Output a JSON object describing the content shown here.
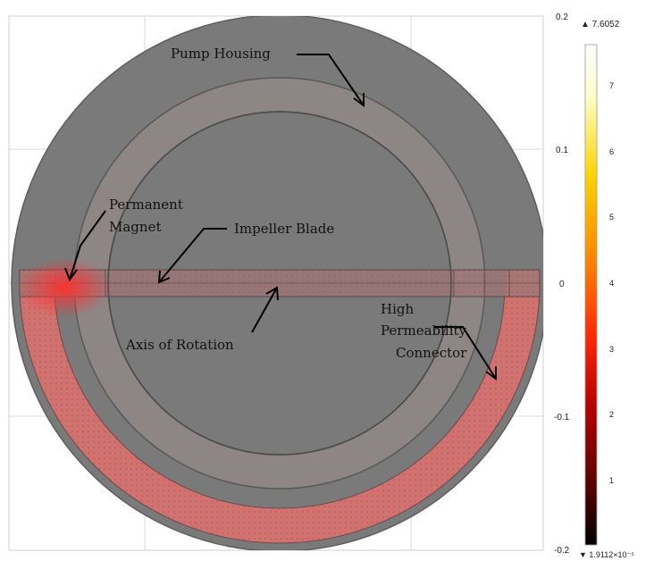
{
  "figure": {
    "labels": {
      "pump_housing": "Pump Housing",
      "permanent_magnet_line1": "Permanent",
      "permanent_magnet_line2": "Magnet",
      "impeller_blade": "Impeller Blade",
      "axis_of_rotation": "Axis of Rotation",
      "high_perm_line1": "High",
      "high_perm_line2": "Permeability",
      "high_perm_line3": "Connector"
    },
    "y_axis_ticks": [
      "0.2",
      "0.1",
      "0",
      "-0.1",
      "-0.2"
    ],
    "colorbar": {
      "max_label": "▲ 7.6052",
      "min_label": "▼ 1.9112×10⁻⁵",
      "ticks": [
        "7",
        "6",
        "5",
        "4",
        "3",
        "2",
        "1"
      ],
      "colors": [
        "#000000",
        "#5a0000",
        "#b80000",
        "#ff2a00",
        "#ff8a00",
        "#ffd400",
        "#ffffcc",
        "#ffffff"
      ]
    },
    "colors": {
      "housing": "#7a7a7a",
      "ring": "#8e8585",
      "connector": "#e8706c",
      "grid": "#d8d8d8"
    }
  }
}
